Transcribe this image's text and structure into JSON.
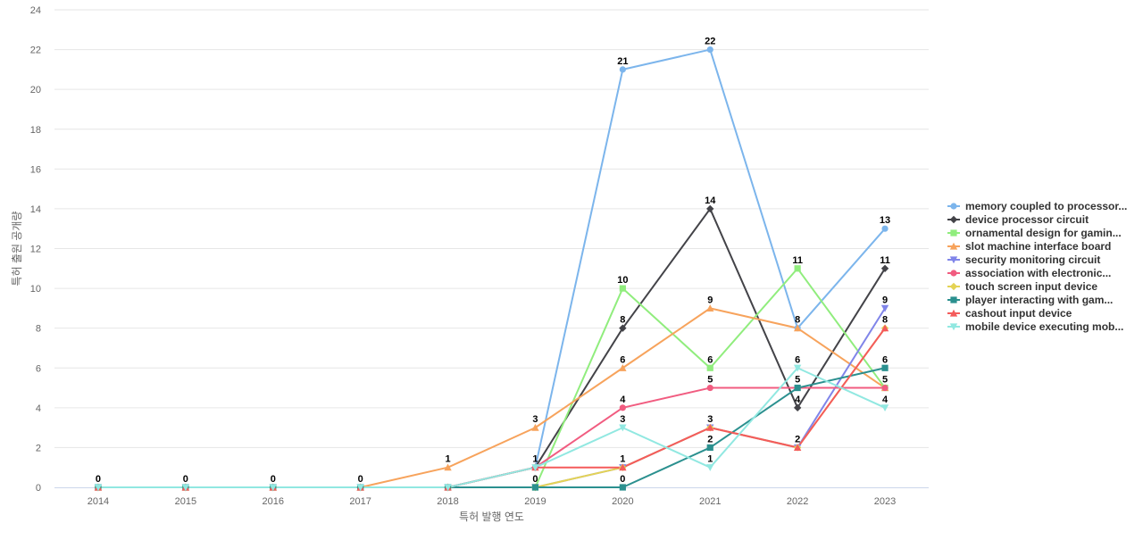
{
  "chart_data": {
    "type": "line",
    "title": "",
    "xlabel": "특허 발행 연도",
    "ylabel": "특허 출원 공개량",
    "x": [
      "2014",
      "2015",
      "2016",
      "2017",
      "2018",
      "2019",
      "2020",
      "2021",
      "2022",
      "2023"
    ],
    "ylim": [
      0,
      24
    ],
    "yticks": [
      0,
      2,
      4,
      6,
      8,
      10,
      12,
      14,
      16,
      18,
      20,
      22,
      24
    ],
    "grid": true,
    "legend_position": "right",
    "series": [
      {
        "name": "memory coupled to processor...",
        "color": "#7cb5ec",
        "marker": "circle",
        "values": [
          0,
          0,
          0,
          0,
          0,
          1,
          21,
          22,
          8,
          13
        ],
        "labels": [
          0,
          0,
          0,
          0,
          null,
          null,
          21,
          22,
          null,
          13
        ]
      },
      {
        "name": "device processor circuit",
        "color": "#434348",
        "marker": "diamond",
        "values": [
          0,
          0,
          0,
          0,
          0,
          1,
          8,
          14,
          4,
          11
        ],
        "labels": [
          null,
          null,
          null,
          null,
          null,
          null,
          8,
          14,
          4,
          11
        ]
      },
      {
        "name": "ornamental design for gamin...",
        "color": "#90ed7d",
        "marker": "square",
        "values": [
          0,
          0,
          0,
          0,
          0,
          0,
          10,
          6,
          11,
          5
        ],
        "labels": [
          null,
          null,
          null,
          null,
          null,
          null,
          10,
          6,
          11,
          null
        ]
      },
      {
        "name": "slot machine interface board",
        "color": "#f7a35c",
        "marker": "triangle",
        "values": [
          0,
          0,
          0,
          0,
          1,
          3,
          6,
          9,
          8,
          5
        ],
        "labels": [
          null,
          null,
          null,
          null,
          1,
          3,
          6,
          9,
          8,
          5
        ]
      },
      {
        "name": "security monitoring circuit",
        "color": "#8085e9",
        "marker": "triangle-down",
        "values": [
          0,
          0,
          0,
          0,
          0,
          0,
          1,
          3,
          2,
          9
        ],
        "labels": [
          null,
          null,
          null,
          null,
          null,
          null,
          null,
          null,
          null,
          9
        ]
      },
      {
        "name": "association with electronic...",
        "color": "#f15c80",
        "marker": "circle",
        "values": [
          0,
          0,
          0,
          0,
          0,
          1,
          4,
          5,
          5,
          5
        ],
        "labels": [
          null,
          null,
          null,
          null,
          null,
          null,
          4,
          5,
          null,
          null
        ]
      },
      {
        "name": "touch screen input device",
        "color": "#e4d354",
        "marker": "diamond",
        "values": [
          0,
          0,
          0,
          0,
          0,
          0,
          1,
          3,
          2,
          8
        ],
        "labels": [
          null,
          null,
          null,
          null,
          null,
          0,
          null,
          null,
          null,
          null
        ]
      },
      {
        "name": "player interacting with gam...",
        "color": "#2b908f",
        "marker": "square",
        "values": [
          0,
          0,
          0,
          0,
          0,
          0,
          0,
          2,
          5,
          6
        ],
        "labels": [
          null,
          null,
          null,
          null,
          null,
          null,
          0,
          2,
          5,
          6
        ]
      },
      {
        "name": "cashout input device",
        "color": "#f45b5b",
        "marker": "triangle",
        "values": [
          0,
          0,
          0,
          0,
          0,
          1,
          1,
          3,
          2,
          8
        ],
        "labels": [
          null,
          null,
          null,
          null,
          null,
          1,
          1,
          3,
          2,
          8
        ]
      },
      {
        "name": "mobile device executing mob...",
        "color": "#91e8e1",
        "marker": "triangle-down",
        "values": [
          0,
          0,
          0,
          0,
          0,
          1,
          3,
          1,
          6,
          4
        ],
        "labels": [
          null,
          null,
          null,
          null,
          null,
          null,
          3,
          1,
          6,
          4
        ]
      }
    ]
  }
}
